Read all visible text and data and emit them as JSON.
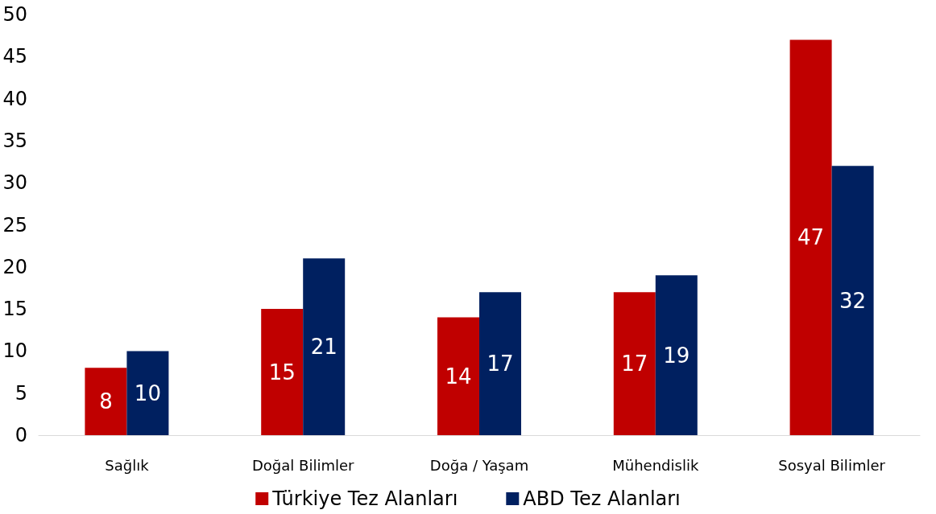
{
  "chart_data": {
    "type": "bar",
    "categories": [
      "Sağlık",
      "Doğal Bilimler",
      "Doğa / Yaşam",
      "Mühendislik",
      "Sosyal Bilimler"
    ],
    "series": [
      {
        "name": "Türkiye Tez Alanları",
        "color": "#c00000",
        "values": [
          8,
          15,
          14,
          17,
          47
        ]
      },
      {
        "name": "ABD Tez Alanları",
        "color": "#002060",
        "values": [
          10,
          21,
          17,
          19,
          32
        ]
      }
    ],
    "ylim": [
      0,
      50
    ],
    "yticks": [
      0,
      5,
      10,
      15,
      20,
      25,
      30,
      35,
      40,
      45,
      50
    ],
    "data_labels": true,
    "grid": false,
    "legend": "bottom"
  }
}
